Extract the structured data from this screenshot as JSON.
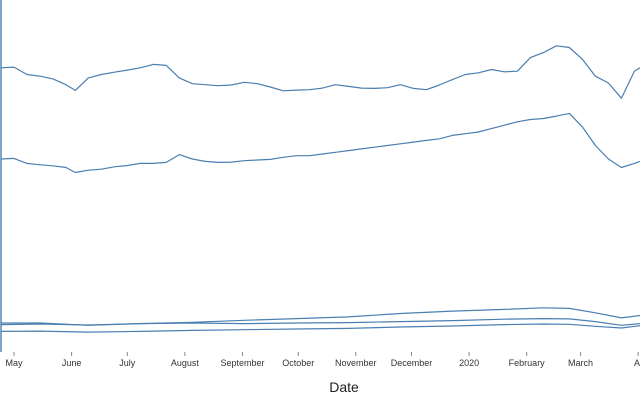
{
  "chart_data": {
    "type": "line",
    "title": "",
    "xlabel": "Date",
    "ylabel": "",
    "xlim": [
      "2019-04-24",
      "2020-04-02"
    ],
    "ylim": [
      0,
      100
    ],
    "grid": false,
    "line_color": "#4a7fb0",
    "x_ticks": [
      {
        "date": "2019-05-01",
        "label": "May"
      },
      {
        "date": "2019-06-01",
        "label": "June"
      },
      {
        "date": "2019-07-01",
        "label": "July"
      },
      {
        "date": "2019-08-01",
        "label": "August"
      },
      {
        "date": "2019-09-01",
        "label": "September"
      },
      {
        "date": "2019-10-01",
        "label": "October"
      },
      {
        "date": "2019-11-01",
        "label": "November"
      },
      {
        "date": "2019-12-01",
        "label": "December"
      },
      {
        "date": "2020-01-01",
        "label": "2020"
      },
      {
        "date": "2020-02-01",
        "label": "February"
      },
      {
        "date": "2020-03-01",
        "label": "March"
      },
      {
        "date": "2020-04-01",
        "label": "A"
      }
    ],
    "series": [
      {
        "x": [
          "2019-04-24",
          "2019-05-01",
          "2019-05-08",
          "2019-05-15",
          "2019-05-22",
          "2019-05-29",
          "2019-06-03",
          "2019-06-10",
          "2019-06-17",
          "2019-06-24",
          "2019-07-01",
          "2019-07-08",
          "2019-07-15",
          "2019-07-22",
          "2019-07-29",
          "2019-08-05",
          "2019-08-12",
          "2019-08-19",
          "2019-08-26",
          "2019-09-02",
          "2019-09-09",
          "2019-09-16",
          "2019-09-23",
          "2019-09-30",
          "2019-10-07",
          "2019-10-14",
          "2019-10-21",
          "2019-10-28",
          "2019-11-04",
          "2019-11-11",
          "2019-11-18",
          "2019-11-25",
          "2019-12-02",
          "2019-12-09",
          "2019-12-16",
          "2019-12-23",
          "2019-12-30",
          "2020-01-06",
          "2020-01-13",
          "2020-01-20",
          "2020-01-27",
          "2020-02-03",
          "2020-02-10",
          "2020-02-17",
          "2020-02-24",
          "2020-03-02",
          "2020-03-09",
          "2020-03-16",
          "2020-03-23",
          "2020-03-30",
          "2020-04-02"
        ],
        "y": [
          83.5,
          83.7,
          81.5,
          81,
          80.2,
          78.5,
          76.8,
          80.5,
          81.5,
          82.2,
          82.8,
          83.5,
          84.5,
          84.2,
          80.5,
          78.8,
          78.5,
          78.2,
          78.4,
          79.2,
          78.8,
          77.8,
          76.7,
          76.9,
          77,
          77.5,
          78.5,
          78,
          77.5,
          77.4,
          77.6,
          78.5,
          77.4,
          77,
          78.4,
          80,
          81.5,
          82,
          83,
          82.3,
          82.5,
          86.5,
          88,
          90,
          89.5,
          86,
          81,
          79,
          74.5,
          82.5,
          83.5
        ]
      },
      {
        "x": [
          "2019-04-24",
          "2019-05-01",
          "2019-05-08",
          "2019-05-15",
          "2019-05-22",
          "2019-05-29",
          "2019-06-03",
          "2019-06-10",
          "2019-06-17",
          "2019-06-24",
          "2019-07-01",
          "2019-07-08",
          "2019-07-15",
          "2019-07-22",
          "2019-07-29",
          "2019-08-05",
          "2019-08-12",
          "2019-08-19",
          "2019-08-26",
          "2019-09-02",
          "2019-09-09",
          "2019-09-16",
          "2019-09-23",
          "2019-09-30",
          "2019-10-07",
          "2019-10-14",
          "2019-10-21",
          "2019-10-28",
          "2019-11-04",
          "2019-11-11",
          "2019-11-18",
          "2019-11-25",
          "2019-12-02",
          "2019-12-09",
          "2019-12-16",
          "2019-12-23",
          "2019-12-30",
          "2020-01-06",
          "2020-01-13",
          "2020-01-20",
          "2020-01-27",
          "2020-02-03",
          "2020-02-10",
          "2020-02-17",
          "2020-02-24",
          "2020-03-02",
          "2020-03-09",
          "2020-03-16",
          "2020-03-23",
          "2020-03-30",
          "2020-04-02"
        ],
        "y": [
          56.5,
          56.7,
          55.2,
          54.8,
          54.5,
          54,
          52.5,
          53.2,
          53.5,
          54.2,
          54.6,
          55.2,
          55.2,
          55.5,
          57.8,
          56.5,
          55.8,
          55.5,
          55.6,
          56,
          56.2,
          56.4,
          57,
          57.5,
          57.5,
          58,
          58.5,
          59,
          59.5,
          60,
          60.5,
          61,
          61.5,
          62,
          62.5,
          63.5,
          64,
          64.5,
          65.5,
          66.5,
          67.5,
          68.2,
          68.5,
          69.2,
          70,
          66,
          60.5,
          56.5,
          54,
          55.2,
          55.8
        ]
      },
      {
        "x": [
          "2019-04-24",
          "2019-05-15",
          "2019-06-10",
          "2019-07-08",
          "2019-08-05",
          "2019-09-02",
          "2019-09-30",
          "2019-10-28",
          "2019-11-25",
          "2019-12-23",
          "2020-01-20",
          "2020-02-10",
          "2020-02-24",
          "2020-03-09",
          "2020-03-23",
          "2020-04-02"
        ],
        "y": [
          8,
          8,
          7.3,
          7.8,
          8.2,
          8.8,
          9.3,
          9.8,
          10.8,
          11.5,
          12,
          12.5,
          12.3,
          11,
          9.5,
          10.2
        ]
      },
      {
        "x": [
          "2019-04-24",
          "2019-05-15",
          "2019-06-10",
          "2019-07-08",
          "2019-08-05",
          "2019-09-02",
          "2019-09-30",
          "2019-10-28",
          "2019-11-25",
          "2019-12-23",
          "2020-01-20",
          "2020-02-10",
          "2020-02-24",
          "2020-03-09",
          "2020-03-23",
          "2020-04-02"
        ],
        "y": [
          7.5,
          7.7,
          7.4,
          7.8,
          8,
          7.8,
          8,
          8.1,
          8.4,
          8.7,
          9.1,
          9.3,
          9.2,
          8.4,
          7.3,
          7.8
        ]
      },
      {
        "x": [
          "2019-04-24",
          "2019-05-15",
          "2019-06-10",
          "2019-07-08",
          "2019-08-05",
          "2019-09-02",
          "2019-09-30",
          "2019-10-28",
          "2019-11-25",
          "2019-12-23",
          "2020-01-20",
          "2020-02-10",
          "2020-02-24",
          "2020-03-09",
          "2020-03-23",
          "2020-04-02"
        ],
        "y": [
          5.5,
          5.6,
          5.3,
          5.5,
          5.8,
          6,
          6.2,
          6.4,
          6.8,
          7.1,
          7.5,
          7.7,
          7.6,
          7,
          6.5,
          7.2
        ]
      }
    ]
  }
}
